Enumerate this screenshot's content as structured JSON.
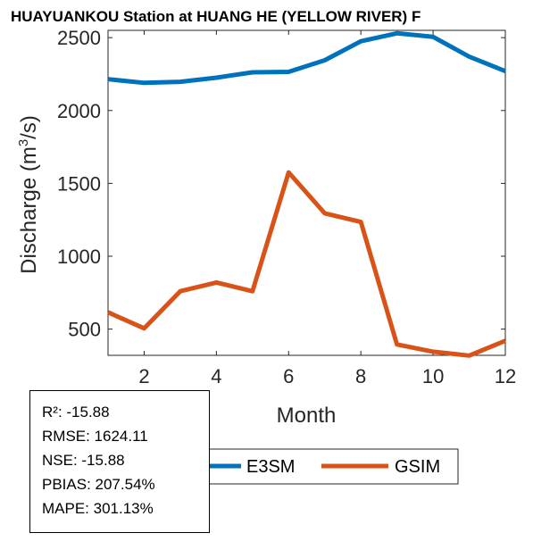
{
  "chart_data": {
    "type": "line",
    "title": "HUAYUANKOU  Station at  HUANG HE (YELLOW RIVER)  F",
    "xlabel": "Month",
    "ylabel_main": "Discharge (m",
    "ylabel_sup": "3",
    "ylabel_end": "/s)",
    "xlim": [
      1,
      12
    ],
    "ylim": [
      320,
      2550
    ],
    "xticks": [
      2,
      4,
      6,
      8,
      10,
      12
    ],
    "xtick_labels": [
      "2",
      "4",
      "6",
      "8",
      "10",
      "12"
    ],
    "yticks": [
      500,
      1000,
      1500,
      2000,
      2500
    ],
    "ytick_labels": [
      "500",
      "1000",
      "1500",
      "2000",
      "2500"
    ],
    "grid": false,
    "legend_position": "below-center",
    "x": [
      1,
      2,
      3,
      4,
      5,
      6,
      7,
      8,
      9,
      10,
      11,
      12
    ],
    "series": [
      {
        "name": "E3SM",
        "color": "#0072bd",
        "values": [
          2215,
          2190,
          2197,
          2225,
          2262,
          2265,
          2345,
          2475,
          2530,
          2505,
          2370,
          2270
        ]
      },
      {
        "name": "GSIM",
        "color": "#d95319",
        "values": [
          615,
          505,
          760,
          820,
          760,
          1575,
          1295,
          1235,
          395,
          345,
          318,
          420
        ]
      }
    ]
  },
  "stats": {
    "r2": "R²: -15.88",
    "rmse": "RMSE: 1624.11",
    "nse": "NSE: -15.88",
    "pbias": "PBIAS: 207.54%",
    "mape": "MAPE: 301.13%"
  }
}
